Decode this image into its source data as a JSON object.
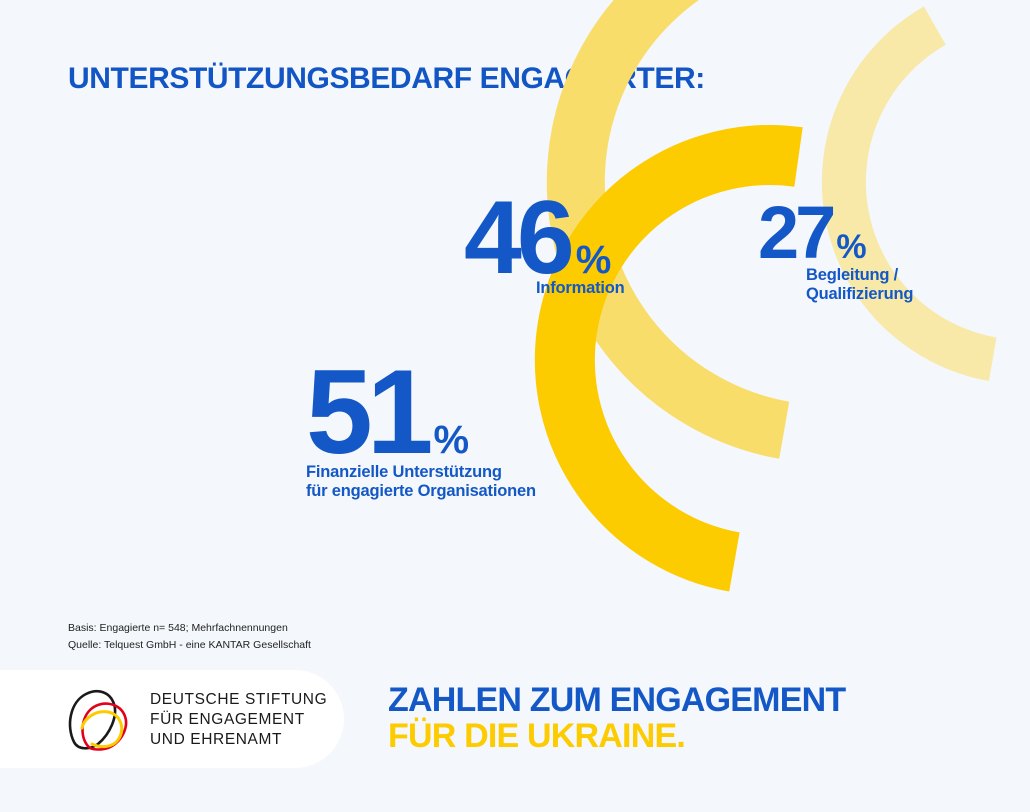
{
  "header": {
    "title": "UNTERSTÜTZUNGSBEDARF ENGAGIERTER:"
  },
  "chart_data": {
    "type": "bar",
    "title": "UNTERSTÜTZUNGSBEDARF ENGAGIERTER:",
    "unit": "%",
    "categories": [
      "Finanzielle Unterstützung für engagierte Organisationen",
      "Information",
      "Begleitung / Qualifizierung"
    ],
    "values": [
      51,
      46,
      27
    ],
    "items": [
      {
        "value": "51",
        "pct": "%",
        "label_lines": [
          "Finanzielle Unterstützung",
          "für engagierte Organisationen"
        ],
        "color": "#fccb00"
      },
      {
        "value": "46",
        "pct": "%",
        "label_lines": [
          "Information"
        ],
        "color": "#f9dd6a"
      },
      {
        "value": "27",
        "pct": "%",
        "label_lines": [
          "Begleitung /",
          "Qualifizierung"
        ],
        "color": "#f8e9a8"
      }
    ]
  },
  "footnote": {
    "basis": "Basis: Engagierte n= 548; Mehrfachnennungen",
    "source": "Quelle: Telquest GmbH - eine KANTAR Gesellschaft"
  },
  "logo": {
    "line1": "DEUTSCHE STIFTUNG",
    "line2": "FÜR ENGAGEMENT",
    "line3": "UND EHRENAMT",
    "colors": [
      "#1a1a1a",
      "#e3001b",
      "#fccb00"
    ]
  },
  "bottom": {
    "line1": "ZAHLEN ZUM ENGAGEMENT",
    "line2": "FÜR DIE UKRAINE."
  },
  "colors": {
    "blue": "#1358c6",
    "yellow": "#fccb00",
    "background": "#f4f7fb"
  }
}
